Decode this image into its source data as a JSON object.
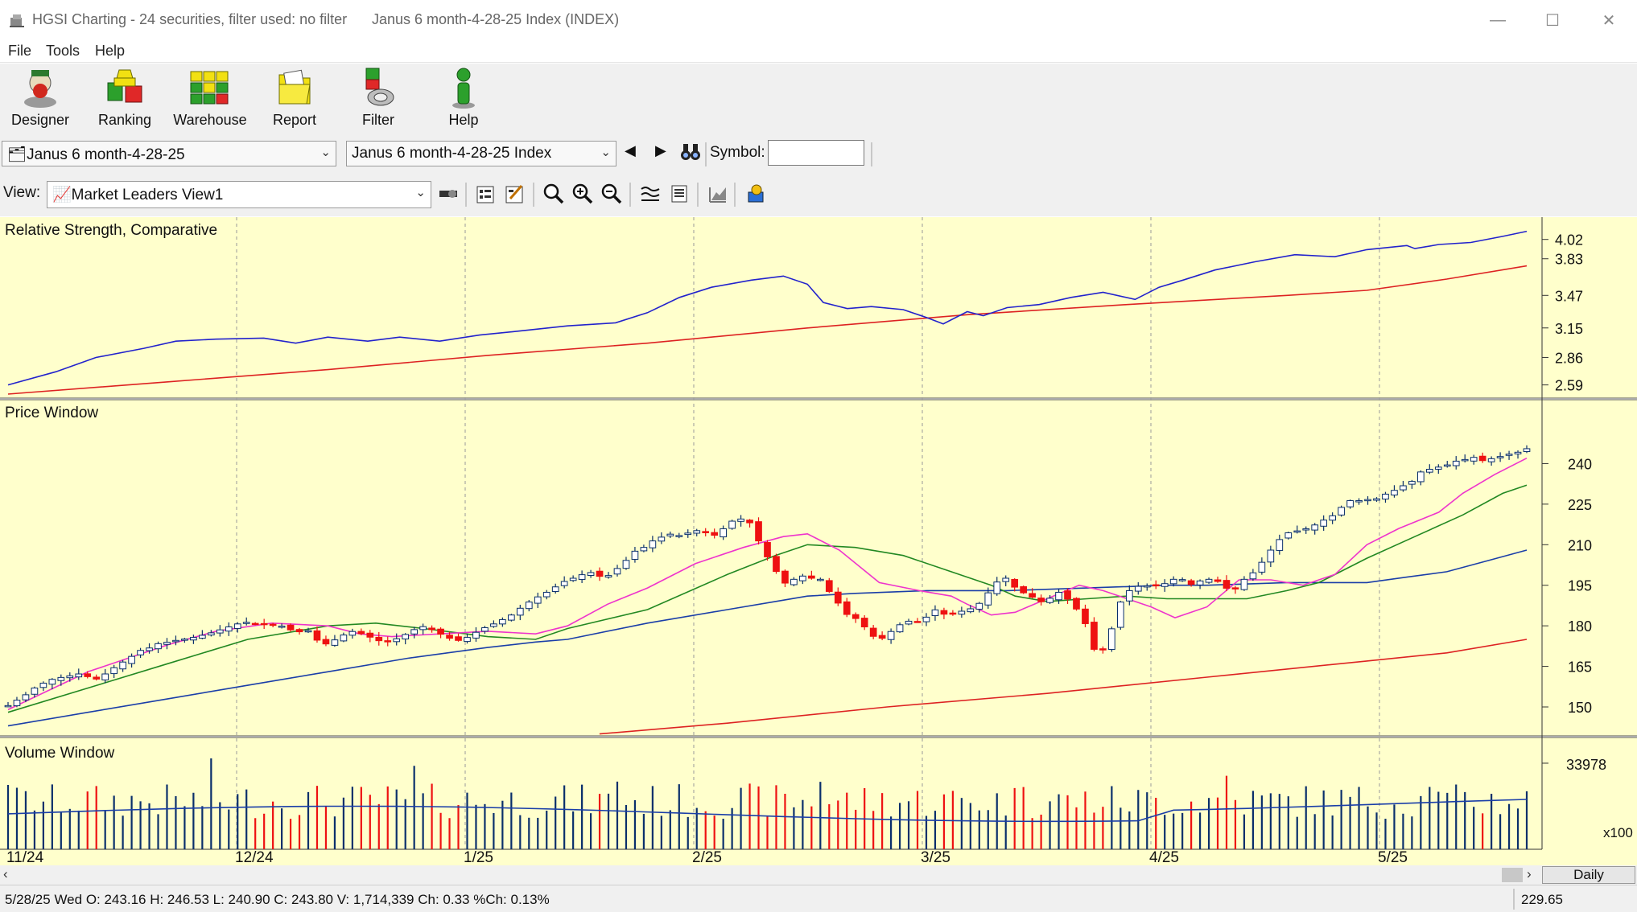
{
  "window": {
    "title": "HGSI Charting - 24 securities, filter used: no filter",
    "document": "Janus 6 month-4-28-25 Index (INDEX)"
  },
  "menu": [
    "File",
    "Tools",
    "Help"
  ],
  "toolbar": [
    {
      "label": "Designer",
      "icon": "designer-icon"
    },
    {
      "label": "Ranking",
      "icon": "ranking-icon"
    },
    {
      "label": "Warehouse",
      "icon": "warehouse-icon"
    },
    {
      "label": "Report",
      "icon": "report-icon"
    },
    {
      "label": "Filter",
      "icon": "filter-icon"
    },
    {
      "label": "Help",
      "icon": "help-icon"
    }
  ],
  "selectors": {
    "list": "Janus 6 month-4-28-25",
    "security": "Janus 6 month-4-28-25 Index",
    "symbol_label": "Symbol:",
    "symbol_value": ""
  },
  "view": {
    "label": "View:",
    "selected": "Market Leaders View1"
  },
  "panels": {
    "rs_title": "Relative Strength, Comparative",
    "price_title": "Price Window",
    "volume_title": "Volume Window",
    "volume_unit": "x100",
    "period_button": "Daily"
  },
  "status": {
    "text": "5/28/25 Wed O: 243.16 H: 246.53 L: 240.90 C: 243.80 V: 1,714,339 Ch: 0.33 %Ch: 0.13%",
    "value": "229.65"
  },
  "colors": {
    "background": "#ffffcc",
    "up": "#0a2f6b",
    "down": "#ee1111",
    "rs_line": "#2222cc",
    "rs_avg": "#dd2222",
    "ma_fast": "#ee33cc",
    "ma_mid": "#228822",
    "ma_slow": "#1a3ea8",
    "ma_long": "#dd2222"
  },
  "chart_data": {
    "type": "candlestick",
    "x_ticks": [
      "11/24",
      "12/24",
      "1/25",
      "2/25",
      "3/25",
      "4/25",
      "5/25"
    ],
    "rs_ticks": [
      "4.02",
      "3.83",
      "3.47",
      "3.15",
      "2.86",
      "2.59"
    ],
    "rs_ylim": [
      2.5,
      4.16
    ],
    "price_ticks": [
      "240",
      "225",
      "210",
      "195",
      "180",
      "165",
      "150"
    ],
    "price_ylim": [
      139,
      255
    ],
    "volume_ticks": [
      "33978"
    ],
    "volume_max": 40000,
    "closes": [
      150.5,
      152.5,
      154.5,
      157,
      158.8,
      160.2,
      160.9,
      161.5,
      162.2,
      161.2,
      160.3,
      162.2,
      164.5,
      166.6,
      168.7,
      170.9,
      171.8,
      173.4,
      173.9,
      174.6,
      175.1,
      175.7,
      176.5,
      177.4,
      178.5,
      179.6,
      180.7,
      181.3,
      180.8,
      180.6,
      180.3,
      179.9,
      178.5,
      177.8,
      178.2,
      174.7,
      173.3,
      174.8,
      176.6,
      177.9,
      177.1,
      175.8,
      174.5,
      174.1,
      175.2,
      176.8,
      178.6,
      179.7,
      178.6,
      176.9,
      175.4,
      174.6,
      175.7,
      177.6,
      179.3,
      180.7,
      182.3,
      184,
      186.5,
      188.8,
      190.7,
      192.4,
      194.4,
      196.4,
      197.6,
      198.9,
      199.7,
      198.3,
      198.6,
      201.2,
      204.2,
      207.6,
      209,
      211.4,
      212.8,
      213.9,
      213.4,
      214.3,
      215.2,
      214.4,
      213.5,
      215.9,
      218.7,
      219.5,
      218.1,
      211.4,
      205.5,
      200.1,
      195.8,
      197.2,
      198.4,
      197.6,
      197.2,
      192.7,
      188.4,
      184.2,
      182.7,
      179.6,
      176.1,
      175.4,
      177.9,
      180.4,
      181.7,
      181.6,
      183.2,
      185.9,
      184.3,
      184.7,
      185.4,
      186.3,
      188.3,
      192.2,
      196.2,
      197.6,
      194.3,
      192.2,
      190.6,
      188.9,
      190.2,
      192.4,
      189.9,
      186.2,
      180.8,
      171.3,
      171.4,
      178.9,
      188.8,
      193,
      194.6,
      194.8,
      195.1,
      195.6,
      197.2,
      197.1,
      195.3,
      196.6,
      197.2,
      196.4,
      193.9,
      193.7,
      197.2,
      199.6,
      203.5,
      208,
      211.9,
      214.4,
      215.1,
      215.9,
      217.3,
      219.1,
      220.7,
      223.8,
      226.3,
      226.3,
      226.7,
      227,
      228.7,
      230.1,
      231.8,
      233.4,
      236.9,
      237.9,
      238.7,
      239.5,
      240.9,
      241.5,
      242.3,
      241.1,
      241.8,
      242.6,
      243.5,
      244.2,
      245.5
    ],
    "ma_fast": [
      [
        0,
        149
      ],
      [
        100,
        163
      ],
      [
        200,
        173
      ],
      [
        260,
        178
      ],
      [
        330,
        181
      ],
      [
        400,
        180
      ],
      [
        440,
        177
      ],
      [
        480,
        176
      ],
      [
        540,
        177
      ],
      [
        600,
        178
      ],
      [
        660,
        177
      ],
      [
        700,
        180
      ],
      [
        750,
        188
      ],
      [
        800,
        194
      ],
      [
        860,
        203
      ],
      [
        920,
        209
      ],
      [
        970,
        213
      ],
      [
        1000,
        214
      ],
      [
        1040,
        208
      ],
      [
        1090,
        196
      ],
      [
        1140,
        193
      ],
      [
        1180,
        191
      ],
      [
        1200,
        188
      ],
      [
        1230,
        184
      ],
      [
        1260,
        185
      ],
      [
        1300,
        190
      ],
      [
        1340,
        195
      ],
      [
        1370,
        193
      ],
      [
        1400,
        190
      ],
      [
        1430,
        187
      ],
      [
        1460,
        183
      ],
      [
        1500,
        187
      ],
      [
        1540,
        197
      ],
      [
        1580,
        197
      ],
      [
        1620,
        195
      ],
      [
        1660,
        199
      ],
      [
        1700,
        210
      ],
      [
        1740,
        216
      ],
      [
        1790,
        222
      ],
      [
        1820,
        229
      ],
      [
        1860,
        236
      ],
      [
        1900,
        242
      ]
    ],
    "ma_mid": [
      [
        0,
        148
      ],
      [
        100,
        157
      ],
      [
        200,
        166
      ],
      [
        300,
        175
      ],
      [
        400,
        180
      ],
      [
        460,
        181
      ],
      [
        520,
        179
      ],
      [
        600,
        176
      ],
      [
        660,
        175
      ],
      [
        700,
        179
      ],
      [
        800,
        186
      ],
      [
        900,
        199
      ],
      [
        960,
        206
      ],
      [
        1000,
        210
      ],
      [
        1060,
        209
      ],
      [
        1120,
        206
      ],
      [
        1180,
        200
      ],
      [
        1230,
        195
      ],
      [
        1260,
        191
      ],
      [
        1300,
        189
      ],
      [
        1350,
        190
      ],
      [
        1400,
        191
      ],
      [
        1450,
        190
      ],
      [
        1500,
        190
      ],
      [
        1550,
        190
      ],
      [
        1600,
        193
      ],
      [
        1640,
        196
      ],
      [
        1700,
        205
      ],
      [
        1760,
        213
      ],
      [
        1820,
        221
      ],
      [
        1870,
        229
      ],
      [
        1900,
        232
      ]
    ],
    "ma_slow": [
      [
        0,
        143
      ],
      [
        100,
        148
      ],
      [
        200,
        153
      ],
      [
        300,
        158
      ],
      [
        400,
        163
      ],
      [
        500,
        168
      ],
      [
        600,
        172
      ],
      [
        660,
        174
      ],
      [
        700,
        175
      ],
      [
        800,
        181
      ],
      [
        900,
        186
      ],
      [
        960,
        189
      ],
      [
        1000,
        191
      ],
      [
        1060,
        192
      ],
      [
        1150,
        193
      ],
      [
        1250,
        193
      ],
      [
        1350,
        194
      ],
      [
        1450,
        195
      ],
      [
        1500,
        195
      ],
      [
        1600,
        196
      ],
      [
        1700,
        196
      ],
      [
        1750,
        198
      ],
      [
        1800,
        200
      ],
      [
        1850,
        204
      ],
      [
        1900,
        208
      ]
    ],
    "ma_long": [
      [
        740,
        140
      ],
      [
        900,
        144
      ],
      [
        1100,
        150
      ],
      [
        1300,
        155
      ],
      [
        1500,
        161
      ],
      [
        1700,
        167
      ],
      [
        1800,
        170
      ],
      [
        1900,
        175
      ]
    ],
    "rs_line": [
      [
        0,
        2.59
      ],
      [
        60,
        2.72
      ],
      [
        110,
        2.86
      ],
      [
        170,
        2.95
      ],
      [
        210,
        3.02
      ],
      [
        260,
        3.04
      ],
      [
        320,
        3.05
      ],
      [
        360,
        3.0
      ],
      [
        400,
        3.06
      ],
      [
        450,
        3.02
      ],
      [
        490,
        3.06
      ],
      [
        540,
        3.02
      ],
      [
        590,
        3.08
      ],
      [
        640,
        3.12
      ],
      [
        700,
        3.17
      ],
      [
        760,
        3.2
      ],
      [
        800,
        3.3
      ],
      [
        840,
        3.45
      ],
      [
        880,
        3.55
      ],
      [
        930,
        3.62
      ],
      [
        970,
        3.66
      ],
      [
        1000,
        3.58
      ],
      [
        1020,
        3.4
      ],
      [
        1050,
        3.34
      ],
      [
        1080,
        3.36
      ],
      [
        1120,
        3.33
      ],
      [
        1150,
        3.25
      ],
      [
        1170,
        3.19
      ],
      [
        1200,
        3.31
      ],
      [
        1220,
        3.27
      ],
      [
        1250,
        3.35
      ],
      [
        1290,
        3.38
      ],
      [
        1330,
        3.45
      ],
      [
        1370,
        3.5
      ],
      [
        1410,
        3.43
      ],
      [
        1440,
        3.55
      ],
      [
        1470,
        3.62
      ],
      [
        1510,
        3.72
      ],
      [
        1560,
        3.8
      ],
      [
        1610,
        3.87
      ],
      [
        1660,
        3.85
      ],
      [
        1700,
        3.92
      ],
      [
        1750,
        3.96
      ],
      [
        1760,
        3.93
      ],
      [
        1790,
        3.97
      ],
      [
        1830,
        3.99
      ],
      [
        1870,
        4.05
      ],
      [
        1900,
        4.1
      ]
    ],
    "rs_avg": [
      [
        0,
        2.5
      ],
      [
        200,
        2.62
      ],
      [
        400,
        2.74
      ],
      [
        600,
        2.88
      ],
      [
        800,
        3.0
      ],
      [
        1000,
        3.15
      ],
      [
        1200,
        3.28
      ],
      [
        1400,
        3.38
      ],
      [
        1600,
        3.47
      ],
      [
        1700,
        3.52
      ],
      [
        1800,
        3.63
      ],
      [
        1900,
        3.76
      ]
    ]
  }
}
